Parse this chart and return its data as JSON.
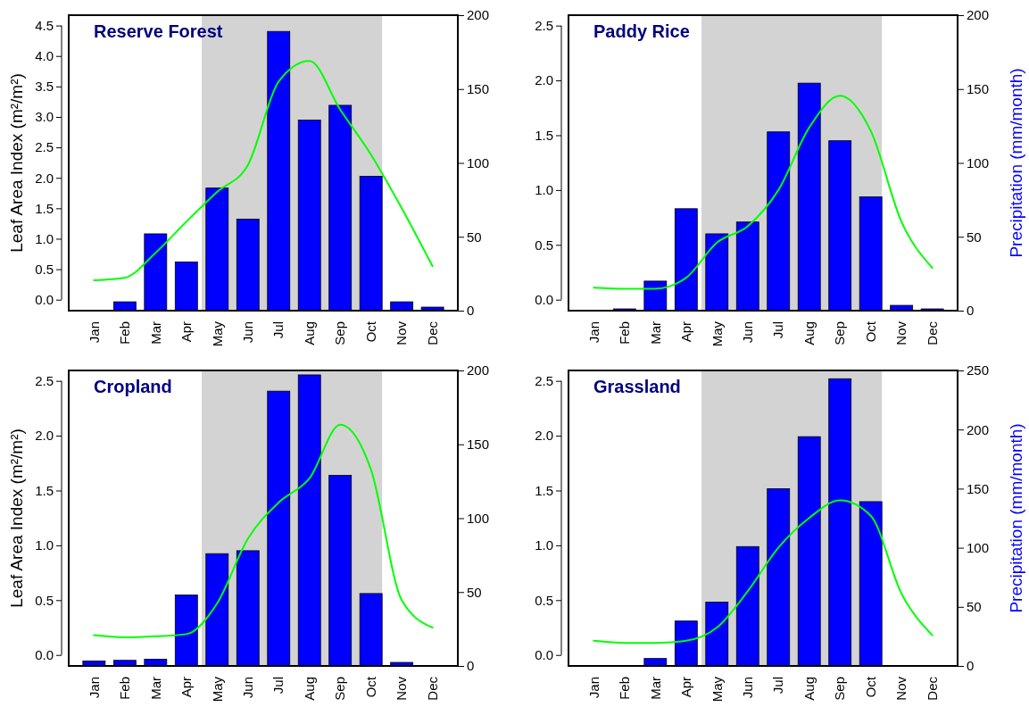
{
  "chart_data": [
    {
      "type": "bar",
      "title": "Reserve Forest",
      "ylabel": "Leaf Area Index (m²/m²)",
      "categories": [
        "Jan",
        "Feb",
        "Mar",
        "Apr",
        "May",
        "Jun",
        "Jul",
        "Aug",
        "Sep",
        "Oct",
        "Nov",
        "Dec"
      ],
      "series": [
        {
          "axis": "y2",
          "color": "#0000ff",
          "values": [
            0,
            6,
            52,
            33,
            83,
            62,
            189,
            129,
            139,
            91,
            6,
            2.4
          ]
        },
        {
          "type": "line",
          "color": "#00ff00",
          "values": [
            0.32,
            0.36,
            0.77,
            1.28,
            1.77,
            2.21,
            3.58,
            3.92,
            3.12,
            2.38,
            1.5,
            0.55
          ]
        }
      ],
      "ylim": [
        -0.18,
        4.67
      ],
      "yticks": [
        {
          "value": 0,
          "label": "0.0"
        },
        {
          "value": 0.5,
          "label": "0.5"
        },
        {
          "value": 1,
          "label": "1.0"
        },
        {
          "value": 1.5,
          "label": "1.5"
        },
        {
          "value": 2,
          "label": "2.0"
        },
        {
          "value": 2.5,
          "label": "2.5"
        },
        {
          "value": 3,
          "label": "3.0"
        },
        {
          "value": 3.5,
          "label": "3.5"
        },
        {
          "value": 4,
          "label": "4.0"
        },
        {
          "value": 4.5,
          "label": "4.5"
        }
      ],
      "y2lim": [
        0,
        200
      ],
      "y2ticks": [
        0,
        50,
        100,
        150,
        200
      ],
      "bands": [
        {
          "axis": "x",
          "from": "May",
          "to": "Oct",
          "color": "#d3d3d3"
        }
      ]
    },
    {
      "type": "bar",
      "title": "Paddy Rice",
      "y2label": "Precipitation (mm/month)",
      "categories": [
        "Jan",
        "Feb",
        "Mar",
        "Apr",
        "May",
        "Jun",
        "Jul",
        "Aug",
        "Sep",
        "Oct",
        "Nov",
        "Dec"
      ],
      "series": [
        {
          "axis": "y2",
          "color": "#0000ff",
          "values": [
            0,
            1.2,
            20,
            69,
            52,
            60,
            121,
            154,
            115,
            77,
            3.6,
            1.2
          ]
        },
        {
          "type": "line",
          "color": "#00ff00",
          "values": [
            0.11,
            0.1,
            0.1,
            0.2,
            0.52,
            0.67,
            1.0,
            1.57,
            1.86,
            1.54,
            0.71,
            0.29
          ]
        }
      ],
      "ylim": [
        -0.1,
        2.595
      ],
      "yticks": [
        {
          "value": 0,
          "label": "0.0"
        },
        {
          "value": 0.5,
          "label": "0.5"
        },
        {
          "value": 1,
          "label": "1.0"
        },
        {
          "value": 1.5,
          "label": "1.5"
        },
        {
          "value": 2,
          "label": "2.0"
        },
        {
          "value": 2.5,
          "label": "2.5"
        }
      ],
      "y2lim": [
        0,
        200
      ],
      "y2ticks": [
        0,
        50,
        100,
        150,
        200
      ],
      "bands": [
        {
          "axis": "x",
          "from": "May",
          "to": "Oct",
          "color": "#d3d3d3"
        }
      ]
    },
    {
      "type": "bar",
      "title": "Cropland",
      "ylabel": "Leaf Area Index (m²/m²)",
      "categories": [
        "Jan",
        "Feb",
        "Mar",
        "Apr",
        "May",
        "Jun",
        "Jul",
        "Aug",
        "Sep",
        "Oct",
        "Nov",
        "Dec"
      ],
      "series": [
        {
          "axis": "y2",
          "color": "#0000ff",
          "values": [
            3.4,
            3.8,
            4.6,
            48,
            76,
            78,
            186,
            197,
            129,
            49,
            2.4,
            0
          ]
        },
        {
          "type": "line",
          "color": "#00ff00",
          "values": [
            0.18,
            0.16,
            0.17,
            0.19,
            0.47,
            1.06,
            1.39,
            1.61,
            2.1,
            1.69,
            0.5,
            0.25
          ]
        }
      ],
      "ylim": [
        -0.1,
        2.595
      ],
      "yticks": [
        {
          "value": 0,
          "label": "0.0"
        },
        {
          "value": 0.5,
          "label": "0.5"
        },
        {
          "value": 1,
          "label": "1.0"
        },
        {
          "value": 1.5,
          "label": "1.5"
        },
        {
          "value": 2,
          "label": "2.0"
        },
        {
          "value": 2.5,
          "label": "2.5"
        }
      ],
      "y2lim": [
        0,
        200
      ],
      "y2ticks": [
        0,
        50,
        100,
        150,
        200
      ],
      "bands": [
        {
          "axis": "x",
          "from": "May",
          "to": "Oct",
          "color": "#d3d3d3"
        }
      ]
    },
    {
      "type": "bar",
      "title": "Grassland",
      "y2label": "Precipitation (mm/month)",
      "categories": [
        "Jan",
        "Feb",
        "Mar",
        "Apr",
        "May",
        "Jun",
        "Jul",
        "Aug",
        "Sep",
        "Oct",
        "Nov",
        "Dec"
      ],
      "series": [
        {
          "axis": "y2",
          "color": "#0000ff",
          "values": [
            0,
            0,
            6.3,
            38,
            54,
            101,
            150,
            194,
            243,
            139,
            0,
            0
          ]
        },
        {
          "type": "line",
          "color": "#00ff00",
          "values": [
            0.13,
            0.11,
            0.11,
            0.13,
            0.25,
            0.58,
            0.98,
            1.25,
            1.41,
            1.27,
            0.56,
            0.18
          ]
        }
      ],
      "ylim": [
        -0.1,
        2.595
      ],
      "yticks": [
        {
          "value": 0,
          "label": "0.0"
        },
        {
          "value": 0.5,
          "label": "0.5"
        },
        {
          "value": 1,
          "label": "1.0"
        },
        {
          "value": 1.5,
          "label": "1.5"
        },
        {
          "value": 2,
          "label": "2.0"
        },
        {
          "value": 2.5,
          "label": "2.5"
        }
      ],
      "y2lim": [
        0,
        250
      ],
      "y2ticks": [
        0,
        50,
        100,
        150,
        200,
        250
      ],
      "bands": [
        {
          "axis": "x",
          "from": "May",
          "to": "Oct",
          "color": "#d3d3d3"
        }
      ]
    }
  ]
}
